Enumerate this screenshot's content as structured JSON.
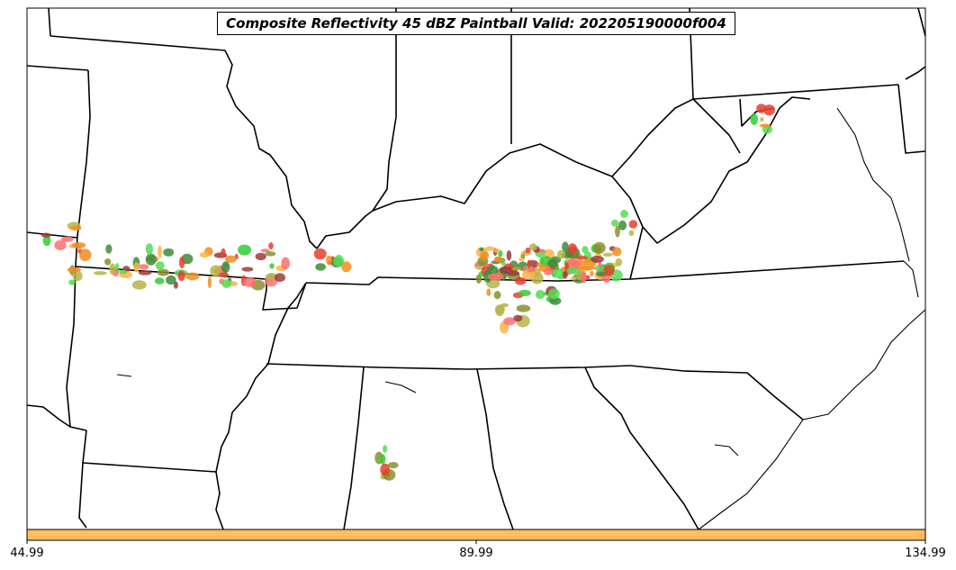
{
  "title": "Composite Reflectivity 45 dBZ Paintball Valid: 202205190000f004",
  "colorbar": {
    "color": "#FFBF5E",
    "ticks": [
      {
        "value": 44.99,
        "label": "44.99"
      },
      {
        "value": 89.99,
        "label": "89.99"
      },
      {
        "value": 134.99,
        "label": "134.99"
      }
    ],
    "range": [
      44.99,
      134.99
    ]
  },
  "paint_colors": [
    "#E8402F",
    "#F48C1E",
    "#FFB347",
    "#9B3B3B",
    "#8A8F2E",
    "#3C8C3C",
    "#33CC33",
    "#55DD55",
    "#B5B54A",
    "#FF6F6F"
  ],
  "map": {
    "projection": "lambert-conformal",
    "region": "Central and Eastern United States",
    "border_color": "#000000",
    "background": "#FFFFFF"
  }
}
